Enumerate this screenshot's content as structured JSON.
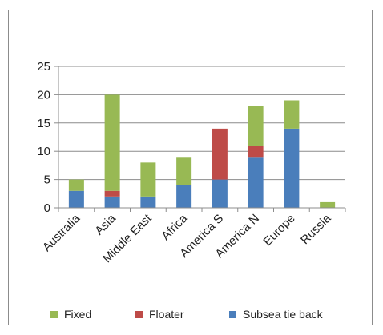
{
  "chart_data": {
    "type": "bar",
    "stacked": true,
    "categories": [
      "Australia",
      "Asia",
      "Middle East",
      "Africa",
      "America S",
      "America N",
      "Europe",
      "Russia"
    ],
    "series": [
      {
        "name": "Subsea tie back",
        "color": "#4a7ebb",
        "values": [
          3,
          2,
          2,
          4,
          5,
          9,
          14,
          0
        ]
      },
      {
        "name": "Floater",
        "color": "#be4b48",
        "values": [
          0,
          1,
          0,
          0,
          9,
          2,
          0,
          0
        ]
      },
      {
        "name": "Fixed",
        "color": "#98b954",
        "values": [
          2,
          17,
          6,
          5,
          0,
          7,
          5,
          1
        ]
      }
    ],
    "yticks": [
      "0",
      "5",
      "10",
      "15",
      "20",
      "25"
    ],
    "ylim": [
      0,
      25
    ],
    "grid": true,
    "legend_position": "bottom",
    "legend_order": [
      "Fixed",
      "Floater",
      "Subsea tie back"
    ]
  }
}
